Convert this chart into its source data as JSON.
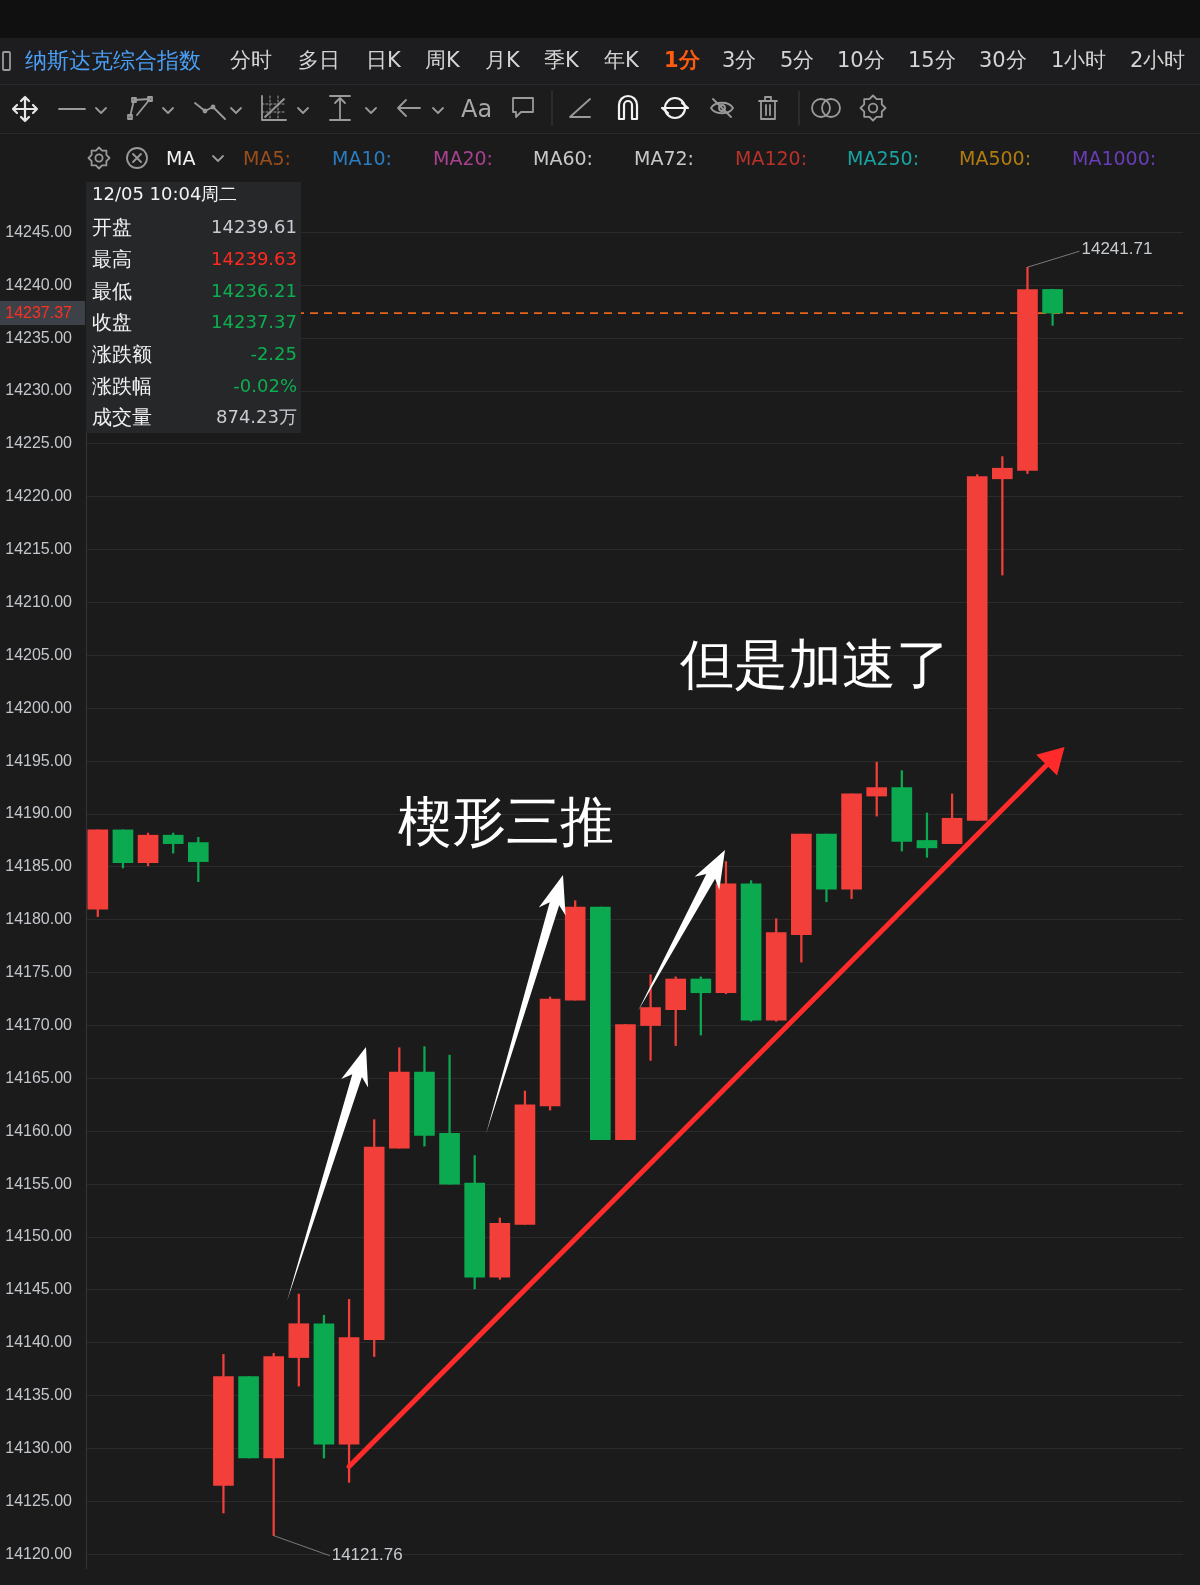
{
  "chart_data": {
    "type": "candlestick",
    "categories": [
      null,
      null,
      null,
      null,
      null,
      null,
      null,
      null,
      null,
      null,
      null,
      null,
      null,
      null,
      null,
      null,
      null,
      null,
      null,
      null,
      null,
      null,
      null,
      null,
      null,
      null,
      null,
      null,
      null,
      null,
      null,
      null,
      null,
      null,
      null,
      null,
      null,
      null,
      null
    ],
    "ohlc": [
      [
        14181.0,
        14188.5,
        14180.3,
        14188.5
      ],
      [
        14188.5,
        14188.5,
        14184.9,
        14185.4
      ],
      [
        14185.4,
        14188.2,
        14185.1,
        14188.0
      ],
      [
        14188.0,
        14188.2,
        14186.3,
        14187.2
      ],
      [
        14187.3,
        14187.8,
        14183.6,
        14185.5
      ],
      [
        14126.5,
        14138.9,
        14123.9,
        14136.8
      ],
      [
        14136.8,
        14136.8,
        14129.1,
        14129.1
      ],
      [
        14129.1,
        14139.0,
        14121.76,
        14138.7
      ],
      [
        14138.6,
        14144.6,
        14135.9,
        14141.8
      ],
      [
        14141.8,
        14142.6,
        14129.1,
        14130.4
      ],
      [
        14130.4,
        14144.1,
        14126.8,
        14140.5
      ],
      [
        14140.3,
        14161.1,
        14138.7,
        14158.5
      ],
      [
        14158.4,
        14167.9,
        14158.4,
        14165.6
      ],
      [
        14165.6,
        14168.0,
        14158.6,
        14159.6
      ],
      [
        14159.8,
        14167.2,
        14155.0,
        14155.0
      ],
      [
        14155.1,
        14157.7,
        14145.1,
        14146.2
      ],
      [
        14146.2,
        14151.8,
        14146.0,
        14151.3
      ],
      [
        14151.2,
        14163.8,
        14151.2,
        14162.5
      ],
      [
        14162.4,
        14172.7,
        14162.0,
        14172.5
      ],
      [
        14172.4,
        14181.8,
        14172.4,
        14181.2
      ],
      [
        14181.2,
        14181.2,
        14159.2,
        14159.2
      ],
      [
        14159.2,
        14170.1,
        14159.2,
        14170.1
      ],
      [
        14170.0,
        14174.8,
        14166.7,
        14171.7
      ],
      [
        14171.5,
        14174.6,
        14168.1,
        14174.4
      ],
      [
        14174.4,
        14174.6,
        14169.1,
        14173.1
      ],
      [
        14173.1,
        14185.5,
        14173.0,
        14183.4
      ],
      [
        14183.4,
        14183.7,
        14170.4,
        14170.5
      ],
      [
        14170.5,
        14180.1,
        14170.4,
        14178.8
      ],
      [
        14178.6,
        14188.1,
        14176.0,
        14188.1
      ],
      [
        14188.1,
        14188.1,
        14181.7,
        14182.9
      ],
      [
        14182.9,
        14191.9,
        14182.0,
        14191.9
      ],
      [
        14191.7,
        14194.9,
        14189.8,
        14192.5
      ],
      [
        14192.5,
        14194.1,
        14186.5,
        14187.4
      ],
      [
        14187.5,
        14190.1,
        14185.9,
        14186.8
      ],
      [
        14187.2,
        14191.9,
        14187.2,
        14189.6
      ],
      [
        14189.4,
        14222.1,
        14189.4,
        14221.9
      ],
      [
        14221.7,
        14223.8,
        14212.6,
        14222.7
      ],
      [
        14222.5,
        14241.71,
        14222.2,
        14239.6
      ],
      [
        14239.61,
        14239.63,
        14236.21,
        14237.37
      ]
    ],
    "colors": [
      "#f23f3a",
      "#0caa50",
      "#f23f3a",
      "#0caa50",
      "#0caa50",
      "#f23f3a",
      "#0caa50",
      "#f23f3a",
      "#f23f3a",
      "#0caa50",
      "#f23f3a",
      "#f23f3a",
      "#f23f3a",
      "#0caa50",
      "#0caa50",
      "#0caa50",
      "#f23f3a",
      "#f23f3a",
      "#f23f3a",
      "#f23f3a",
      "#0caa50",
      "#f23f3a",
      "#f23f3a",
      "#f23f3a",
      "#0caa50",
      "#f23f3a",
      "#0caa50",
      "#f23f3a",
      "#f23f3a",
      "#0caa50",
      "#f23f3a",
      "#f23f3a",
      "#0caa50",
      "#0caa50",
      "#f23f3a",
      "#f23f3a",
      "#f23f3a",
      "#f23f3a",
      "#0caa50"
    ],
    "series": [
      {
        "type": "line",
        "color": "#ff2b2b",
        "values": [
          null,
          null,
          null,
          null,
          null,
          null,
          null,
          null,
          null,
          null,
          14128.3,
          null,
          null,
          null,
          null,
          null,
          null,
          null,
          null,
          null,
          null,
          null,
          null,
          null,
          null,
          null,
          null,
          null,
          null,
          null,
          null,
          null,
          null,
          null,
          null,
          null,
          null,
          null,
          14195.2
        ]
      }
    ],
    "ylim": [
      14118.7,
      14248.16
    ],
    "yticks": [
      {
        "value": 14120,
        "label": "14120.00"
      },
      {
        "value": 14125,
        "label": "14125.00"
      },
      {
        "value": 14130,
        "label": "14130.00"
      },
      {
        "value": 14135,
        "label": "14135.00"
      },
      {
        "value": 14140,
        "label": "14140.00"
      },
      {
        "value": 14145,
        "label": "14145.00"
      },
      {
        "value": 14150,
        "label": "14150.00"
      },
      {
        "value": 14155,
        "label": "14155.00"
      },
      {
        "value": 14160,
        "label": "14160.00"
      },
      {
        "value": 14165,
        "label": "14165.00"
      },
      {
        "value": 14170,
        "label": "14170.00"
      },
      {
        "value": 14175,
        "label": "14175.00"
      },
      {
        "value": 14180,
        "label": "14180.00"
      },
      {
        "value": 14185,
        "label": "14185.00"
      },
      {
        "value": 14190,
        "label": "14190.00"
      },
      {
        "value": 14195,
        "label": "14195.00"
      },
      {
        "value": 14200,
        "label": "14200.00"
      },
      {
        "value": 14205,
        "label": "14205.00"
      },
      {
        "value": 14210,
        "label": "14210.00"
      },
      {
        "value": 14215,
        "label": "14215.00"
      },
      {
        "value": 14220,
        "label": "14220.00"
      },
      {
        "value": 14225,
        "label": "14225.00"
      },
      {
        "value": 14230,
        "label": "14230.00"
      },
      {
        "value": 14235,
        "label": "14235.00"
      },
      {
        "value": 14240,
        "label": "14240.00"
      },
      {
        "value": 14245,
        "label": "14245.00"
      }
    ],
    "grid": "y",
    "tick_labels": "y",
    "ref_lines": [
      {
        "axis": "y",
        "value": 14237.37,
        "label": "14237.37",
        "color": "#e8631c",
        "line_style": "dashed"
      }
    ],
    "annotations": [
      "纳斯达克综合指数",
      "分时",
      "多日",
      "日K",
      "周K",
      "月K",
      "季K",
      "年K",
      "1分",
      "3分",
      "5分",
      "10分",
      "15分",
      "30分",
      "1小时",
      "2小时",
      "Aa",
      "MA",
      "MA5:",
      "MA10:",
      "MA20:",
      "MA60:",
      "MA72:",
      "MA120:",
      "MA250:",
      "MA500:",
      "MA1000:",
      "12/05 10:04周二",
      "开盘",
      "最高",
      "最低",
      "收盘",
      "涨跌额",
      "涨跌幅",
      "成交量",
      "14239.61",
      "14239.63",
      "14236.21",
      "14237.37",
      "-2.25",
      "-0.02%",
      "874.23万",
      "楔形三推",
      "但是加速了",
      "14241.71",
      "14121.76"
    ]
  }
}
